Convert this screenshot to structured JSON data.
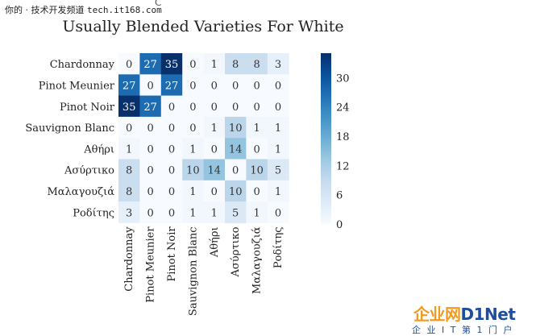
{
  "watermark": {
    "site_label": "你的 · 技术开发频道",
    "site_url": "tech.it168.com"
  },
  "stray_glyph": "C",
  "logo": {
    "main_a": "企业网",
    "main_b": "D1Net",
    "sub": "企 业 I T 第 1 门 户"
  },
  "chart_data": {
    "type": "heatmap",
    "title": "Usually Blended Varieties For White",
    "row_labels": [
      "Chardonnay",
      "Pinot Meunier",
      "Pinot Noir",
      "Sauvignon Blanc",
      "Αθήρι",
      "Ασύρτικο",
      "Μαλαγουζιά",
      "Ροδίτης"
    ],
    "col_labels": [
      "Chardonnay",
      "Pinot Meunier",
      "Pinot Noir",
      "Sauvignon Blanc",
      "Αθήρι",
      "Ασύρτικο",
      "Μαλαγουζιά",
      "Ροδίτης"
    ],
    "values": [
      [
        0,
        27,
        35,
        0,
        1,
        8,
        8,
        3
      ],
      [
        27,
        0,
        27,
        0,
        0,
        0,
        0,
        0
      ],
      [
        35,
        27,
        0,
        0,
        0,
        0,
        0,
        0
      ],
      [
        0,
        0,
        0,
        0,
        1,
        10,
        1,
        1
      ],
      [
        1,
        0,
        0,
        1,
        0,
        14,
        0,
        1
      ],
      [
        8,
        0,
        0,
        10,
        14,
        0,
        10,
        5
      ],
      [
        8,
        0,
        0,
        1,
        0,
        10,
        0,
        1
      ],
      [
        3,
        0,
        0,
        1,
        1,
        5,
        1,
        0
      ]
    ],
    "colorbar": {
      "range": [
        0,
        35
      ],
      "ticks": [
        0,
        6,
        12,
        18,
        24,
        30
      ],
      "colormap": "Blues"
    }
  }
}
